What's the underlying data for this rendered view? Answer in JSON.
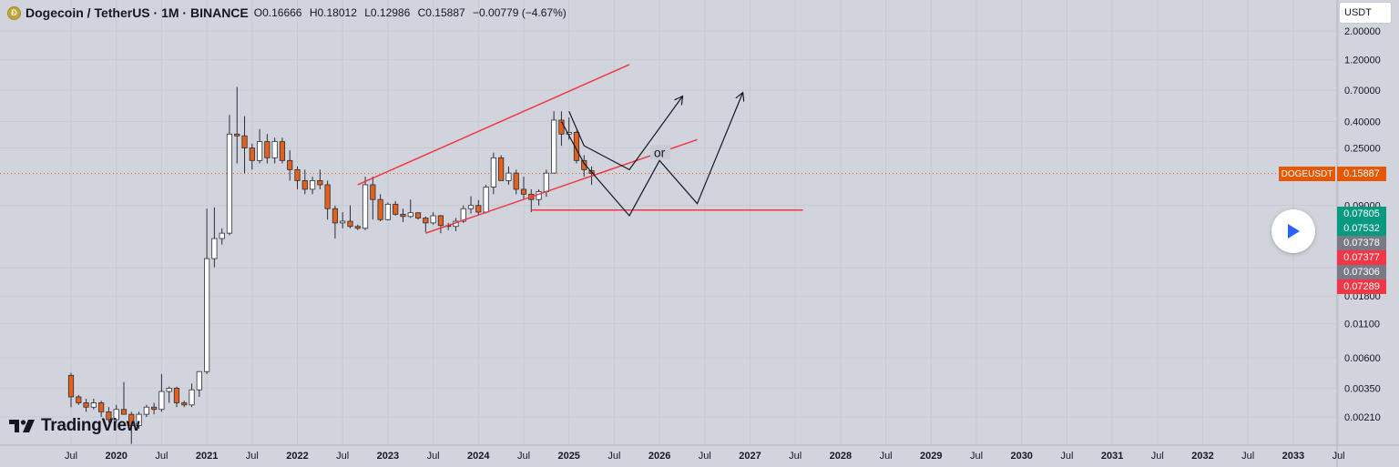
{
  "header": {
    "coin_glyph": "Ð",
    "symbol": "Dogecoin / TetherUS · 1M · BINANCE",
    "open": "O0.16666",
    "high": "H0.18012",
    "low": "L0.12986",
    "close": "C0.15887",
    "change": "−0.00779 (−4.67%)"
  },
  "currency_button": "USDT",
  "branding": "TradingView",
  "last_price": {
    "symbol": "DOGEUSDT",
    "value": "0.15887",
    "color": "#e55700"
  },
  "price_tags": [
    {
      "value": "0.07805",
      "color": "#089981"
    },
    {
      "value": "0.07532",
      "color": "#089981"
    },
    {
      "value": "0.07378",
      "color": "#787b86"
    },
    {
      "value": "0.07377",
      "color": "#f23645"
    },
    {
      "value": "0.07306",
      "color": "#787b86"
    },
    {
      "value": "0.07289",
      "color": "#f23645"
    }
  ],
  "colors": {
    "up_body": "#ffffff",
    "down_body": "#e3611a",
    "wick": "#2a2e39",
    "channel": "#f23645",
    "grid": "#c8cad2",
    "background": "#d1d4dc"
  },
  "chart_data": {
    "type": "candlestick",
    "scale": "log",
    "grid": true,
    "y_ticks": [
      2.0,
      1.2,
      0.7,
      0.4,
      0.25,
      0.09,
      0.0297,
      0.018,
      0.011,
      0.006,
      0.0035,
      0.0021
    ],
    "y_tick_labels": [
      "2.00000",
      "1.20000",
      "0.70000",
      "0.40000",
      "0.25000",
      "0.09000",
      "0.02970",
      "0.01800",
      "0.01100",
      "0.00600",
      "0.00350",
      "0.00210"
    ],
    "x_ticks": [
      "2019-07",
      "2020-01",
      "2020-07",
      "2021-01",
      "2021-07",
      "2022-01",
      "2022-07",
      "2023-01",
      "2023-07",
      "2024-01",
      "2024-07",
      "2025-01",
      "2025-07",
      "2026-01",
      "2026-07",
      "2027-01",
      "2027-07",
      "2028-01",
      "2028-07",
      "2029-01",
      "2029-07",
      "2030-01",
      "2030-07",
      "2031-01",
      "2031-07",
      "2032-01",
      "2032-07",
      "2033-01",
      "2033-07"
    ],
    "x_tick_labels": [
      "Jul",
      "2020",
      "Jul",
      "2021",
      "Jul",
      "2022",
      "Jul",
      "2023",
      "Jul",
      "2024",
      "Jul",
      "2025",
      "Jul",
      "2026",
      "Jul",
      "2027",
      "Jul",
      "2028",
      "Jul",
      "2029",
      "Jul",
      "2030",
      "Jul",
      "2031",
      "Jul",
      "2032",
      "Jul",
      "2033",
      "Jul"
    ],
    "candles": [
      {
        "t": "2019-07",
        "o": 0.0044,
        "h": 0.0046,
        "l": 0.0025,
        "c": 0.003
      },
      {
        "t": "2019-08",
        "o": 0.003,
        "h": 0.0031,
        "l": 0.0026,
        "c": 0.0027
      },
      {
        "t": "2019-09",
        "o": 0.0027,
        "h": 0.0029,
        "l": 0.0023,
        "c": 0.0025
      },
      {
        "t": "2019-10",
        "o": 0.0025,
        "h": 0.0029,
        "l": 0.0024,
        "c": 0.0027
      },
      {
        "t": "2019-11",
        "o": 0.0027,
        "h": 0.0028,
        "l": 0.0021,
        "c": 0.0023
      },
      {
        "t": "2019-12",
        "o": 0.0023,
        "h": 0.0025,
        "l": 0.0019,
        "c": 0.002
      },
      {
        "t": "2020-01",
        "o": 0.002,
        "h": 0.0026,
        "l": 0.0019,
        "c": 0.0024
      },
      {
        "t": "2020-02",
        "o": 0.0024,
        "h": 0.0039,
        "l": 0.0023,
        "c": 0.0022
      },
      {
        "t": "2020-03",
        "o": 0.0022,
        "h": 0.0023,
        "l": 0.0013,
        "c": 0.0018
      },
      {
        "t": "2020-04",
        "o": 0.0018,
        "h": 0.0023,
        "l": 0.0017,
        "c": 0.0022
      },
      {
        "t": "2020-05",
        "o": 0.0022,
        "h": 0.0026,
        "l": 0.0021,
        "c": 0.0025
      },
      {
        "t": "2020-06",
        "o": 0.0025,
        "h": 0.0027,
        "l": 0.0022,
        "c": 0.0024
      },
      {
        "t": "2020-07",
        "o": 0.0024,
        "h": 0.0045,
        "l": 0.0023,
        "c": 0.0033
      },
      {
        "t": "2020-08",
        "o": 0.0033,
        "h": 0.0036,
        "l": 0.0027,
        "c": 0.0035
      },
      {
        "t": "2020-09",
        "o": 0.0035,
        "h": 0.0036,
        "l": 0.0025,
        "c": 0.0027
      },
      {
        "t": "2020-10",
        "o": 0.0027,
        "h": 0.0028,
        "l": 0.0025,
        "c": 0.0026
      },
      {
        "t": "2020-11",
        "o": 0.0026,
        "h": 0.0038,
        "l": 0.0025,
        "c": 0.0034
      },
      {
        "t": "2020-12",
        "o": 0.0034,
        "h": 0.0042,
        "l": 0.003,
        "c": 0.0047
      },
      {
        "t": "2021-01",
        "o": 0.0047,
        "h": 0.085,
        "l": 0.0045,
        "c": 0.035
      },
      {
        "t": "2021-02",
        "o": 0.035,
        "h": 0.087,
        "l": 0.03,
        "c": 0.05
      },
      {
        "t": "2021-03",
        "o": 0.05,
        "h": 0.06,
        "l": 0.045,
        "c": 0.055
      },
      {
        "t": "2021-04",
        "o": 0.055,
        "h": 0.45,
        "l": 0.053,
        "c": 0.32
      },
      {
        "t": "2021-05",
        "o": 0.32,
        "h": 0.74,
        "l": 0.19,
        "c": 0.31
      },
      {
        "t": "2021-06",
        "o": 0.31,
        "h": 0.44,
        "l": 0.16,
        "c": 0.25
      },
      {
        "t": "2021-07",
        "o": 0.25,
        "h": 0.27,
        "l": 0.17,
        "c": 0.2
      },
      {
        "t": "2021-08",
        "o": 0.2,
        "h": 0.35,
        "l": 0.19,
        "c": 0.28
      },
      {
        "t": "2021-09",
        "o": 0.28,
        "h": 0.32,
        "l": 0.19,
        "c": 0.21
      },
      {
        "t": "2021-10",
        "o": 0.21,
        "h": 0.3,
        "l": 0.19,
        "c": 0.28
      },
      {
        "t": "2021-11",
        "o": 0.28,
        "h": 0.3,
        "l": 0.19,
        "c": 0.2
      },
      {
        "t": "2021-12",
        "o": 0.2,
        "h": 0.24,
        "l": 0.14,
        "c": 0.17
      },
      {
        "t": "2022-01",
        "o": 0.17,
        "h": 0.18,
        "l": 0.12,
        "c": 0.14
      },
      {
        "t": "2022-02",
        "o": 0.14,
        "h": 0.17,
        "l": 0.11,
        "c": 0.12
      },
      {
        "t": "2022-03",
        "o": 0.12,
        "h": 0.15,
        "l": 0.11,
        "c": 0.14
      },
      {
        "t": "2022-04",
        "o": 0.14,
        "h": 0.17,
        "l": 0.12,
        "c": 0.13
      },
      {
        "t": "2022-05",
        "o": 0.13,
        "h": 0.14,
        "l": 0.07,
        "c": 0.085
      },
      {
        "t": "2022-06",
        "o": 0.085,
        "h": 0.09,
        "l": 0.05,
        "c": 0.066
      },
      {
        "t": "2022-07",
        "o": 0.066,
        "h": 0.08,
        "l": 0.06,
        "c": 0.068
      },
      {
        "t": "2022-08",
        "o": 0.068,
        "h": 0.09,
        "l": 0.06,
        "c": 0.062
      },
      {
        "t": "2022-09",
        "o": 0.062,
        "h": 0.064,
        "l": 0.058,
        "c": 0.06
      },
      {
        "t": "2022-10",
        "o": 0.06,
        "h": 0.15,
        "l": 0.058,
        "c": 0.13
      },
      {
        "t": "2022-11",
        "o": 0.13,
        "h": 0.15,
        "l": 0.07,
        "c": 0.1
      },
      {
        "t": "2022-12",
        "o": 0.1,
        "h": 0.11,
        "l": 0.068,
        "c": 0.07
      },
      {
        "t": "2023-01",
        "o": 0.07,
        "h": 0.095,
        "l": 0.069,
        "c": 0.092
      },
      {
        "t": "2023-02",
        "o": 0.092,
        "h": 0.097,
        "l": 0.075,
        "c": 0.077
      },
      {
        "t": "2023-03",
        "o": 0.077,
        "h": 0.085,
        "l": 0.067,
        "c": 0.074
      },
      {
        "t": "2023-04",
        "o": 0.074,
        "h": 0.1,
        "l": 0.072,
        "c": 0.079
      },
      {
        "t": "2023-05",
        "o": 0.079,
        "h": 0.08,
        "l": 0.07,
        "c": 0.072
      },
      {
        "t": "2023-06",
        "o": 0.072,
        "h": 0.074,
        "l": 0.056,
        "c": 0.066
      },
      {
        "t": "2023-07",
        "o": 0.066,
        "h": 0.08,
        "l": 0.064,
        "c": 0.075
      },
      {
        "t": "2023-08",
        "o": 0.075,
        "h": 0.076,
        "l": 0.055,
        "c": 0.063
      },
      {
        "t": "2023-09",
        "o": 0.063,
        "h": 0.066,
        "l": 0.058,
        "c": 0.062
      },
      {
        "t": "2023-10",
        "o": 0.062,
        "h": 0.072,
        "l": 0.057,
        "c": 0.068
      },
      {
        "t": "2023-11",
        "o": 0.068,
        "h": 0.09,
        "l": 0.066,
        "c": 0.085
      },
      {
        "t": "2023-12",
        "o": 0.085,
        "h": 0.106,
        "l": 0.078,
        "c": 0.09
      },
      {
        "t": "2024-01",
        "o": 0.09,
        "h": 0.099,
        "l": 0.075,
        "c": 0.08
      },
      {
        "t": "2024-02",
        "o": 0.08,
        "h": 0.13,
        "l": 0.078,
        "c": 0.125
      },
      {
        "t": "2024-03",
        "o": 0.125,
        "h": 0.23,
        "l": 0.11,
        "c": 0.21
      },
      {
        "t": "2024-04",
        "o": 0.21,
        "h": 0.22,
        "l": 0.14,
        "c": 0.14
      },
      {
        "t": "2024-05",
        "o": 0.14,
        "h": 0.18,
        "l": 0.13,
        "c": 0.16
      },
      {
        "t": "2024-06",
        "o": 0.16,
        "h": 0.17,
        "l": 0.11,
        "c": 0.12
      },
      {
        "t": "2024-07",
        "o": 0.12,
        "h": 0.15,
        "l": 0.1,
        "c": 0.11
      },
      {
        "t": "2024-08",
        "o": 0.11,
        "h": 0.12,
        "l": 0.08,
        "c": 0.1
      },
      {
        "t": "2024-09",
        "o": 0.1,
        "h": 0.12,
        "l": 0.09,
        "c": 0.115
      },
      {
        "t": "2024-10",
        "o": 0.115,
        "h": 0.17,
        "l": 0.105,
        "c": 0.16
      },
      {
        "t": "2024-11",
        "o": 0.16,
        "h": 0.48,
        "l": 0.16,
        "c": 0.41
      },
      {
        "t": "2024-12",
        "o": 0.41,
        "h": 0.48,
        "l": 0.26,
        "c": 0.32
      },
      {
        "t": "2025-01",
        "o": 0.32,
        "h": 0.43,
        "l": 0.29,
        "c": 0.33
      },
      {
        "t": "2025-02",
        "o": 0.33,
        "h": 0.34,
        "l": 0.19,
        "c": 0.2
      },
      {
        "t": "2025-03",
        "o": 0.2,
        "h": 0.22,
        "l": 0.15,
        "c": 0.17
      },
      {
        "t": "2025-04",
        "o": 0.16666,
        "h": 0.18012,
        "l": 0.12986,
        "c": 0.15887
      }
    ],
    "annotations": [
      {
        "type": "trendline",
        "color": "#f23645",
        "points": [
          [
            "2022-09",
            0.13
          ],
          [
            "2025-09",
            1.1
          ]
        ]
      },
      {
        "type": "trendline",
        "color": "#f23645",
        "points": [
          [
            "2023-06",
            0.055
          ],
          [
            "2026-06",
            0.29
          ]
        ]
      },
      {
        "type": "horizontal_ray",
        "color": "#f23645",
        "points": [
          [
            "2024-08",
            0.083
          ],
          [
            "2027-08",
            0.083
          ]
        ]
      },
      {
        "type": "path",
        "color": "#131722",
        "points": [
          [
            "2025-01",
            0.48
          ],
          [
            "2025-03",
            0.26
          ],
          [
            "2025-09",
            0.17
          ],
          [
            "2026-04",
            0.62
          ]
        ]
      },
      {
        "type": "path",
        "color": "#131722",
        "points": [
          [
            "2024-12",
            0.4
          ],
          [
            "2025-03",
            0.19
          ],
          [
            "2025-09",
            0.075
          ],
          [
            "2026-01",
            0.2
          ],
          [
            "2026-06",
            0.093
          ],
          [
            "2026-12",
            0.66
          ]
        ]
      },
      {
        "type": "text",
        "text": "or",
        "at": [
          "2026-01",
          0.22
        ]
      }
    ]
  }
}
